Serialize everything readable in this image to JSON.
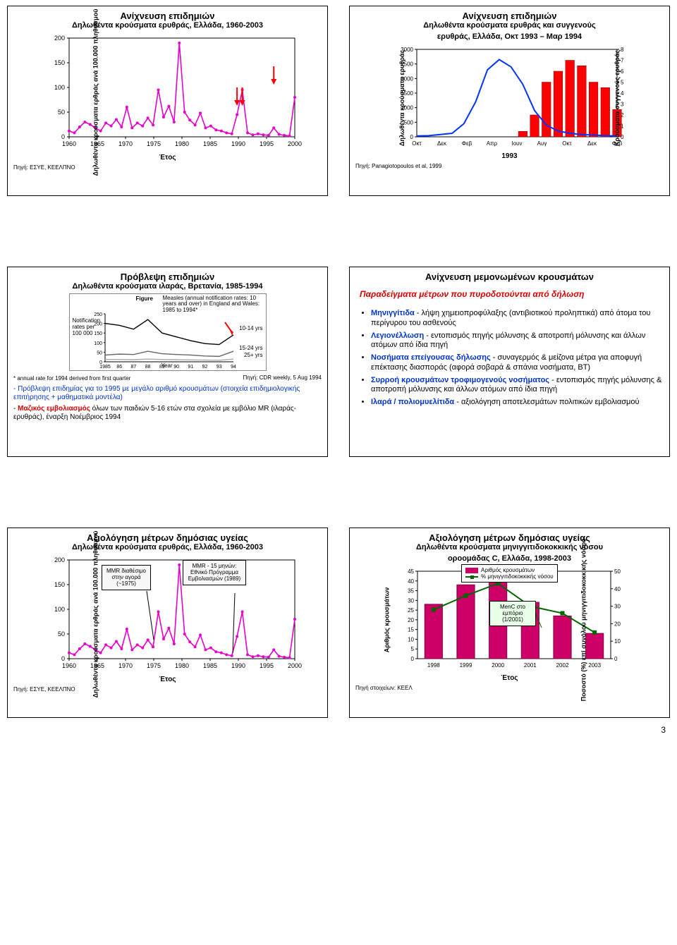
{
  "page_number": "3",
  "p1": {
    "title": "Ανίχνευση επιδημιών",
    "subtitle": "Δηλωθέντα κρούσματα ερυθράς, Ελλάδα, 1960-2003",
    "ylabel": "Δηλωθέντα κρούσματα ερθράς ανά 100.000 πληθυσμού",
    "xlabel": "Έτος",
    "source": "Πηγή: ΕΣΥΕ, ΚΕΕΛΠΝΟ",
    "yticks": [
      0,
      50,
      100,
      150,
      200
    ],
    "xticks": [
      1960,
      1965,
      1970,
      1975,
      1980,
      1985,
      1990,
      1995,
      2000
    ],
    "series_color": "#e600cc",
    "arrow_color": "#ff0000",
    "values": [
      12,
      8,
      20,
      30,
      25,
      18,
      12,
      28,
      22,
      35,
      20,
      60,
      18,
      28,
      22,
      38,
      24,
      95,
      40,
      62,
      30,
      190,
      50,
      34,
      24,
      48,
      18,
      22,
      14,
      12,
      8,
      6,
      45,
      95,
      8,
      4,
      6,
      4,
      3,
      18,
      5,
      3,
      2,
      80
    ]
  },
  "p2": {
    "title": "Ανίχνευση επιδημιών",
    "subtitle1": "Δηλωθέντα κρούσματα ερυθράς και συγγενούς",
    "subtitle2": "ερυθράς, Ελλάδα, Οκτ 1993 – Μαρ 1994",
    "ylabel_left": "Δηλωθέντα κρούσματα ερυθράς",
    "ylabel_right": "Κρούσματα συγγενούς ερυθράς",
    "year_label": "1993",
    "source": "Πηγή: Panagiotopoulos et al, 1999",
    "yticks_left": [
      0,
      500,
      1000,
      1500,
      2000,
      2500,
      3000
    ],
    "yticks_right": [
      0,
      1,
      2,
      3,
      4,
      5,
      6,
      7,
      8
    ],
    "xticks": [
      "Οκτ",
      "Δεκ",
      "Φεβ",
      "Απρ",
      "Ιουν",
      "Αυγ",
      "Οκτ",
      "Δεκ",
      "Φεβ"
    ],
    "line_color": "#0033ff",
    "bar_color": "#ff0000",
    "line_values": [
      30,
      40,
      80,
      120,
      450,
      1200,
      2300,
      2650,
      2400,
      1800,
      900,
      400,
      200,
      120,
      80,
      60,
      40,
      30
    ],
    "bar_values": [
      0,
      0,
      0,
      0,
      0,
      0,
      0,
      0,
      0,
      0.5,
      2,
      5,
      6,
      7,
      6.5,
      5,
      4.5,
      2.5
    ]
  },
  "p3": {
    "title": "Πρόβλεψη επιδημιών",
    "subtitle": "Δηλωθέντα κρούσματα ιλαράς, Βρετανία, 1985-1994",
    "fig_title": "Measles (annual notification rates: 10 years and over) in England and Wales: 1985 to 1994*",
    "fig_label": "Figure",
    "fig_ylab": "Notification rates per 100 000",
    "fig_xlab": "Year",
    "fig_yticks": [
      0,
      50,
      100,
      150,
      200,
      250
    ],
    "fig_xticks": [
      "1985",
      "86",
      "87",
      "88",
      "89",
      "90",
      "91",
      "92",
      "93",
      "94"
    ],
    "fig_legend": [
      "10-14 yrs",
      "15-24 yrs",
      "25+ yrs"
    ],
    "fig_footnote": "* annual rate for 1994 derived from first quarter",
    "fig_source": "Πηγή: CDR weekly, 5 Aug 1994",
    "fig_colors": {
      "l1024": "#000000",
      "l1524": "#666666",
      "l25": "#aaaaaa",
      "arrow": "#ff0000"
    },
    "note1": "- Πρόβλεψη επιδημίας για το 1995 με μεγάλο αριθμό κρουσμάτων (στοιχεία επιδημιολογικής επιτήρησης + μαθηματικά μοντέλα)",
    "note2": "- Μαζικός εμβολιασμός όλων των παιδιών 5-16 ετών στα σχολεία με εμβόλιο MR (ιλαράς-ερυθράς), έναρξη Νοέμβριος 1994",
    "note_colors": {
      "n1": "#0033cc",
      "n2b": "#d90000"
    }
  },
  "p4": {
    "title": "Ανίχνευση μεμονωμένων κρουσμάτων",
    "lead": "Παραδείγματα μέτρων που πυροδοτούνται από δήλωση",
    "bullets": [
      {
        "b": "Μηνιγγίτιδα",
        "t": " - λήψη χημειοπροφύλαξης (αντιβιοτικού προληπτικά) από άτομα του περίγυρου του ασθενούς"
      },
      {
        "b": "Λεγιονέλλωση",
        "t": " - εντοπισμός πηγής μόλυνσης & αποτροπή μόλυνσης και άλλων ατόμων από ίδια πηγή"
      },
      {
        "b": "Νοσήματα επείγουσας δήλωσης",
        "t": " - συναγερμός & μείζονα μέτρα για αποφυγή επέκτασης διασποράς (αφορά σοβαρά & σπάνια νοσήματα, ΒΤ)"
      },
      {
        "b": "Συρροή κρουσμάτων τροφιμογενούς νοσήματος",
        "t": " - εντοπισμός πηγής μόλυνσης & αποτροπή μόλυνσης και άλλων ατόμων από ίδια πηγή"
      },
      {
        "b": "Ιλαρά / πολιομυελίτιδα",
        "t": " - αξιολόγηση αποτελεσμάτων πολιτικών εμβολιασμού"
      }
    ]
  },
  "p5": {
    "title": "Αξιολόγηση μέτρων δημόσιας υγείας",
    "subtitle": "Δηλωθέντα κρούσματα ερυθράς, Ελλάδα, 1960-2003",
    "ylabel": "Δηλωθέντα κρούσματα ερθράς ανά 100.000 πληθυσμού",
    "xlabel": "Έτος",
    "source": "Πηγή: ΕΣΥΕ, ΚΕΕΛΠΝΟ",
    "yticks": [
      0,
      50,
      100,
      150,
      200
    ],
    "xticks": [
      1960,
      1965,
      1970,
      1975,
      1980,
      1985,
      1990,
      1995,
      2000
    ],
    "series_color": "#e600cc",
    "callout1": "MMR διαθέσιμο στην αγορά (~1975)",
    "callout2": "MMR - 15 μηνών: Εθνικό Πρόγραμμα Εμβολιασμών (1989)",
    "values": [
      12,
      8,
      20,
      30,
      25,
      18,
      12,
      28,
      22,
      35,
      20,
      60,
      18,
      28,
      22,
      38,
      24,
      95,
      40,
      62,
      30,
      190,
      50,
      34,
      24,
      48,
      18,
      22,
      14,
      12,
      8,
      6,
      45,
      95,
      8,
      4,
      6,
      4,
      3,
      18,
      5,
      3,
      2,
      80
    ]
  },
  "p6": {
    "title": "Αξιολόγηση μέτρων δημόσιας υγείας",
    "subtitle1": "Δηλωθέντα κρούσματα μηνιγγιτιδοκοκκικής νόσου",
    "subtitle2": "οροομάδας C, Ελλάδα, 1998-2003",
    "ylabel_left": "Αριθμός κρουσμάτων",
    "ylabel_right": "Ποσοστό (%) επί συνόλου μηνιγγιτιδοκοκκικής νόσου",
    "xlabel": "Έτος",
    "source": "Πηγή στοιχείων: ΚΕΕΛ",
    "yticks_left": [
      0,
      5,
      10,
      15,
      20,
      25,
      30,
      35,
      40,
      45
    ],
    "yticks_right": [
      0,
      10,
      20,
      30,
      40,
      50
    ],
    "xticks": [
      1998,
      1999,
      2000,
      2001,
      2002,
      2003
    ],
    "bar_color": "#cc0066",
    "line_color": "#006600",
    "legend": {
      "bars": "Αριθμός κρουσμάτων",
      "line": "% μηνιγγιτιδοκοκκικής νόσου"
    },
    "callout": "MenC στο εμπόριο (1/2001)",
    "bar_values": [
      28,
      38,
      41,
      29,
      22,
      13
    ],
    "line_values": [
      28,
      36,
      43,
      30,
      26,
      15
    ]
  }
}
